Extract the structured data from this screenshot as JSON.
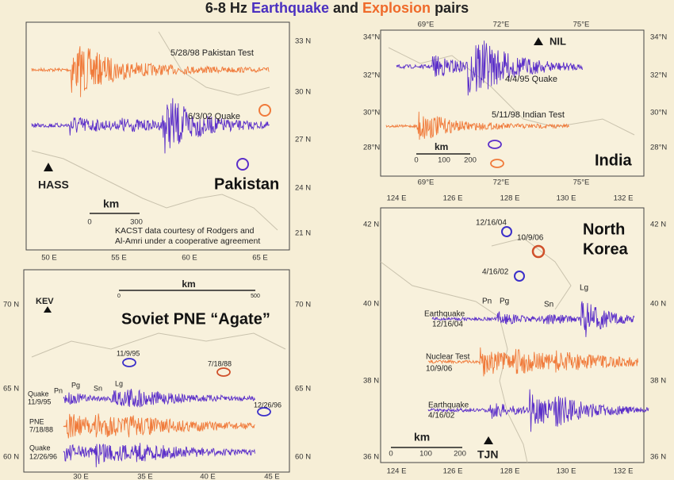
{
  "title": {
    "prefix": "6-8 Hz",
    "quake": "Earthquake",
    "and": "and",
    "explosion": "Explosion",
    "suffix": "pairs"
  },
  "panels": [
    {
      "region": "Pakistan",
      "station": "HASS",
      "lat_labels": [
        "33 N",
        "30 N",
        "27 N",
        "24 N",
        "21 N"
      ],
      "lon_labels": [
        "50 E",
        "55 E",
        "60 E",
        "65 E"
      ],
      "traces": [
        {
          "label": "5/28/98 Pakistan Test",
          "color": "#f07a3a"
        },
        {
          "label": "6/3/02 Quake",
          "color": "#5b2fc9"
        }
      ],
      "scale": {
        "unit": "km",
        "ticks": [
          "0",
          "300"
        ]
      },
      "credit": [
        "KACST data courtesy of Rodgers and",
        "Al-Amri under a cooperative agreement"
      ]
    },
    {
      "region": "India",
      "station": "NIL",
      "lat_labels": [
        "34°N",
        "32°N",
        "30°N",
        "28°N"
      ],
      "lon_labels": [
        "69°E",
        "72°E",
        "75°E"
      ],
      "traces": [
        {
          "label": "4/4/95 Quake",
          "color": "#5b2fc9"
        },
        {
          "label": "5/11/98 Indian Test",
          "color": "#f07a3a"
        }
      ],
      "scale": {
        "unit": "km",
        "ticks": [
          "0",
          "100",
          "200"
        ]
      }
    },
    {
      "region": "Soviet PNE “Agate”",
      "station": "KEV",
      "lat_labels": [
        "70 N",
        "65 N",
        "60 N"
      ],
      "lon_labels": [
        "30 E",
        "35 E",
        "40 E",
        "45 E"
      ],
      "events": [
        {
          "label": "11/9/95",
          "color": "#3b2fc9"
        },
        {
          "label": "7/18/88",
          "color": "#d0502a"
        },
        {
          "label": "12/26/96",
          "color": "#3b2fc9"
        }
      ],
      "phases": [
        "Pn",
        "Pg",
        "Sn",
        "Lg"
      ],
      "traces": [
        {
          "name": "Quake",
          "date": "11/9/95",
          "color": "#5b2fc9"
        },
        {
          "name": "PNE",
          "date": "7/18/88",
          "color": "#f07a3a"
        },
        {
          "name": "Quake",
          "date": "12/26/96",
          "color": "#5b2fc9"
        }
      ],
      "scale": {
        "unit": "km",
        "ticks": [
          "0",
          "500"
        ]
      }
    },
    {
      "region": [
        "North",
        "Korea"
      ],
      "station": "TJN",
      "lat_labels": [
        "42 N",
        "40 N",
        "38 N",
        "36 N"
      ],
      "lon_labels": [
        "124 E",
        "126 E",
        "128 E",
        "130 E",
        "132 E"
      ],
      "events": [
        {
          "label": "12/16/04",
          "color": "#3b2fc9"
        },
        {
          "label": "10/9/06",
          "color": "#d0502a"
        },
        {
          "label": "4/16/02",
          "color": "#3b2fc9"
        }
      ],
      "phases": [
        "Pn",
        "Pg",
        "Sn",
        "Lg"
      ],
      "traces": [
        {
          "name": "Earthquake",
          "date": "12/16/04",
          "color": "#5b2fc9"
        },
        {
          "name": "Nuclear Test",
          "date": "10/9/06",
          "color": "#f07a3a"
        },
        {
          "name": "Earthquake",
          "date": "4/16/02",
          "color": "#5b2fc9"
        }
      ],
      "scale": {
        "unit": "km",
        "ticks": [
          "0",
          "100",
          "200"
        ]
      }
    }
  ]
}
